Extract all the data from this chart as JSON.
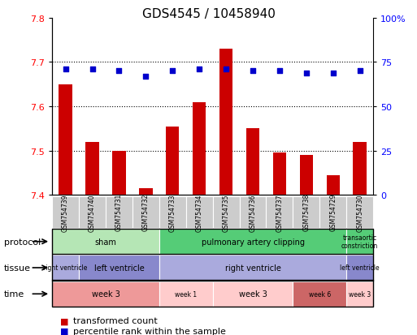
{
  "title": "GDS4545 / 10458940",
  "samples": [
    "GSM754739",
    "GSM754740",
    "GSM754731",
    "GSM754732",
    "GSM754733",
    "GSM754734",
    "GSM754735",
    "GSM754736",
    "GSM754737",
    "GSM754738",
    "GSM754729",
    "GSM754730"
  ],
  "bar_values": [
    7.65,
    7.52,
    7.5,
    7.415,
    7.555,
    7.61,
    7.73,
    7.55,
    7.495,
    7.49,
    7.445,
    7.52
  ],
  "percentile_values": [
    71,
    71,
    70,
    67,
    70,
    71,
    71,
    70,
    70,
    69,
    69,
    70
  ],
  "ylim_left": [
    7.4,
    7.8
  ],
  "ylim_right": [
    0,
    100
  ],
  "yticks_left": [
    7.4,
    7.5,
    7.6,
    7.7,
    7.8
  ],
  "yticks_right": [
    0,
    25,
    50,
    75,
    100
  ],
  "bar_color": "#cc0000",
  "dot_color": "#0000cc",
  "bar_width": 0.5,
  "chart_bg": "#ffffff",
  "protocol_row": {
    "label": "protocol",
    "segments": [
      {
        "text": "sham",
        "start": 0,
        "end": 4,
        "color": "#b5e6b5"
      },
      {
        "text": "pulmonary artery clipping",
        "start": 4,
        "end": 11,
        "color": "#55cc77"
      },
      {
        "text": "transaortic\nconstriction",
        "start": 11,
        "end": 12,
        "color": "#55cc77"
      }
    ]
  },
  "tissue_row": {
    "label": "tissue",
    "segments": [
      {
        "text": "right ventricle",
        "start": 0,
        "end": 1,
        "color": "#aaaadd"
      },
      {
        "text": "left ventricle",
        "start": 1,
        "end": 4,
        "color": "#8888cc"
      },
      {
        "text": "right ventricle",
        "start": 4,
        "end": 11,
        "color": "#aaaadd"
      },
      {
        "text": "left ventricle",
        "start": 11,
        "end": 12,
        "color": "#8888cc"
      }
    ]
  },
  "time_row": {
    "label": "time",
    "segments": [
      {
        "text": "week 3",
        "start": 0,
        "end": 4,
        "color": "#ee9999"
      },
      {
        "text": "week 1",
        "start": 4,
        "end": 6,
        "color": "#ffcccc"
      },
      {
        "text": "week 3",
        "start": 6,
        "end": 9,
        "color": "#ffcccc"
      },
      {
        "text": "week 6",
        "start": 9,
        "end": 11,
        "color": "#cc6666"
      },
      {
        "text": "week 3",
        "start": 11,
        "end": 12,
        "color": "#ffcccc"
      }
    ]
  }
}
